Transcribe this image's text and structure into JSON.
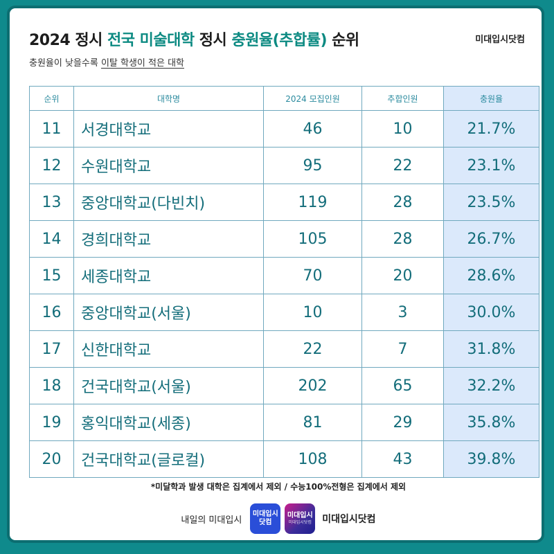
{
  "header": {
    "title_prefix": "2024 정시 ",
    "title_accent1": "전국 미술대학",
    "title_middle": " 정시 ",
    "title_accent2": "충원율(추합률)",
    "title_suffix": " 순위",
    "subtitle_prefix": "충원율이 낮을수록 ",
    "subtitle_underlined": "이탈 학생이 적은 대학",
    "brand": "미대입시닷컴"
  },
  "table": {
    "columns": [
      "순위",
      "대학명",
      "2024 모집인원",
      "추합인원",
      "충원율"
    ],
    "rows": [
      {
        "rank": "11",
        "name": "서경대학교",
        "quota": "46",
        "extra": "10",
        "rate": "21.7%"
      },
      {
        "rank": "12",
        "name": "수원대학교",
        "quota": "95",
        "extra": "22",
        "rate": "23.1%"
      },
      {
        "rank": "13",
        "name": "중앙대학교(다빈치)",
        "quota": "119",
        "extra": "28",
        "rate": "23.5%"
      },
      {
        "rank": "14",
        "name": "경희대학교",
        "quota": "105",
        "extra": "28",
        "rate": "26.7%"
      },
      {
        "rank": "15",
        "name": "세종대학교",
        "quota": "70",
        "extra": "20",
        "rate": "28.6%"
      },
      {
        "rank": "16",
        "name": "중앙대학교(서울)",
        "quota": "10",
        "extra": "3",
        "rate": "30.0%"
      },
      {
        "rank": "17",
        "name": "신한대학교",
        "quota": "22",
        "extra": "7",
        "rate": "31.8%"
      },
      {
        "rank": "18",
        "name": "건국대학교(서울)",
        "quota": "202",
        "extra": "65",
        "rate": "32.2%"
      },
      {
        "rank": "19",
        "name": "홍익대학교(세종)",
        "quota": "81",
        "extra": "29",
        "rate": "35.8%"
      },
      {
        "rank": "20",
        "name": "건국대학교(글로컬)",
        "quota": "108",
        "extra": "43",
        "rate": "39.8%"
      }
    ]
  },
  "footnote": "*미달학과 발생 대학은 집계에서 제외 / 수능100%전형은 집계에서 제외",
  "footer": {
    "tagline": "내일의 미대입시",
    "logo1_line1": "미대입시",
    "logo1_line2": "닷컴",
    "logo2_line1": "미대입시",
    "logo2_line2": "미대입시닷컴",
    "brand": "미대입시닷컴"
  },
  "colors": {
    "background": "#0f8a8c",
    "accent": "#0c8a82",
    "rate_column_bg": "#dbe9fb",
    "cell_text": "#136d7a"
  }
}
